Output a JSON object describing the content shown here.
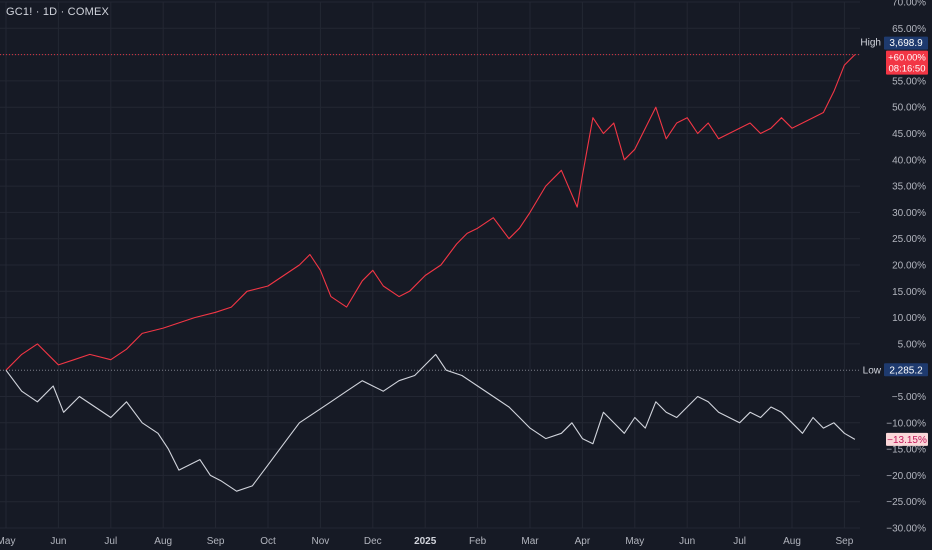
{
  "header": {
    "symbol": "GC1! · 1D · COMEX"
  },
  "colors": {
    "background": "#161a25",
    "grid": "#232733",
    "axis_text": "#b2b5be",
    "series_up": "#f23645",
    "series_down": "#d1d4dc",
    "high_badge": "#1e3a6e",
    "low_badge": "#1e3a6e",
    "marker_red": "#f23645"
  },
  "chart_data": {
    "type": "line",
    "ylim": [
      -30,
      70
    ],
    "yunit": "%",
    "y_ticks": [
      -30,
      -25,
      -20,
      -15,
      -10,
      -5,
      5,
      10,
      15,
      20,
      25,
      30,
      35,
      40,
      45,
      50,
      55,
      60,
      65,
      70
    ],
    "y_tick_labels": [
      "−30.00%",
      "−25.00%",
      "−20.00%",
      "−15.00%",
      "−10.00%",
      "−5.00%",
      "5.00%",
      "10.00%",
      "15.00%",
      "20.00%",
      "25.00%",
      "30.00%",
      "35.00%",
      "40.00%",
      "45.00%",
      "50.00%",
      "55.00%",
      "60.00%",
      "65.00%",
      "70.00%"
    ],
    "x_ticks": [
      "May",
      "Jun",
      "Jul",
      "Aug",
      "Sep",
      "Oct",
      "Nov",
      "Dec",
      "2025",
      "Feb",
      "Mar",
      "Apr",
      "May",
      "Jun",
      "Jul",
      "Aug",
      "Sep"
    ],
    "x_tick_positions": [
      0,
      1,
      2,
      3,
      4,
      5,
      6,
      7,
      8,
      9,
      10,
      11,
      12,
      13,
      14,
      15,
      16
    ],
    "series": [
      {
        "key": "up",
        "color": "#f23645",
        "x": [
          0,
          0.3,
          0.6,
          0.9,
          1.0,
          1.3,
          1.6,
          2.0,
          2.3,
          2.6,
          3.0,
          3.3,
          3.6,
          4.0,
          4.3,
          4.6,
          5.0,
          5.3,
          5.6,
          5.8,
          6.0,
          6.2,
          6.5,
          6.8,
          7.0,
          7.2,
          7.5,
          7.7,
          8.0,
          8.3,
          8.6,
          8.8,
          9.0,
          9.3,
          9.6,
          9.8,
          10.0,
          10.3,
          10.6,
          10.9,
          11.0,
          11.2,
          11.4,
          11.6,
          11.8,
          12.0,
          12.2,
          12.4,
          12.6,
          12.8,
          13.0,
          13.2,
          13.4,
          13.6,
          13.8,
          14.0,
          14.2,
          14.4,
          14.6,
          14.8,
          15.0,
          15.2,
          15.4,
          15.6,
          15.8,
          16.0,
          16.2
        ],
        "values": [
          0,
          3,
          5,
          2,
          1,
          2,
          3,
          2,
          4,
          7,
          8,
          9,
          10,
          11,
          12,
          15,
          16,
          18,
          20,
          22,
          19,
          14,
          12,
          17,
          19,
          16,
          14,
          15,
          18,
          20,
          24,
          26,
          27,
          29,
          25,
          27,
          30,
          35,
          38,
          31,
          37,
          48,
          45,
          47,
          40,
          42,
          46,
          50,
          44,
          47,
          48,
          45,
          47,
          44,
          45,
          46,
          47,
          45,
          46,
          48,
          46,
          47,
          48,
          49,
          53,
          58,
          60
        ]
      },
      {
        "key": "down",
        "color": "#d1d4dc",
        "x": [
          0,
          0.3,
          0.6,
          0.9,
          1.1,
          1.4,
          1.7,
          2.0,
          2.3,
          2.6,
          2.9,
          3.1,
          3.3,
          3.5,
          3.7,
          3.9,
          4.1,
          4.4,
          4.7,
          5.0,
          5.3,
          5.6,
          5.9,
          6.2,
          6.5,
          6.8,
          7.0,
          7.2,
          7.5,
          7.8,
          8.0,
          8.2,
          8.4,
          8.7,
          9.0,
          9.3,
          9.6,
          9.8,
          10.0,
          10.3,
          10.6,
          10.8,
          11.0,
          11.2,
          11.4,
          11.6,
          11.8,
          12.0,
          12.2,
          12.4,
          12.6,
          12.8,
          13.0,
          13.2,
          13.4,
          13.6,
          13.8,
          14.0,
          14.2,
          14.4,
          14.6,
          14.8,
          15.0,
          15.2,
          15.4,
          15.6,
          15.8,
          16.0,
          16.2
        ],
        "values": [
          0,
          -4,
          -6,
          -3,
          -8,
          -5,
          -7,
          -9,
          -6,
          -10,
          -12,
          -15,
          -19,
          -18,
          -17,
          -20,
          -21,
          -23,
          -22,
          -18,
          -14,
          -10,
          -8,
          -6,
          -4,
          -2,
          -3,
          -4,
          -2,
          -1,
          1,
          3,
          0,
          -1,
          -3,
          -5,
          -7,
          -9,
          -11,
          -13,
          -12,
          -10,
          -13,
          -14,
          -8,
          -10,
          -12,
          -9,
          -11,
          -6,
          -8,
          -9,
          -7,
          -5,
          -6,
          -8,
          -9,
          -10,
          -8,
          -9,
          -7,
          -8,
          -10,
          -12,
          -9,
          -11,
          -10,
          -12,
          -13.15
        ]
      }
    ],
    "high": {
      "label": "High",
      "value_text": "3,698.9",
      "level": 60
    },
    "low": {
      "label": "Low",
      "value_text": "2,285.2",
      "level": 0
    },
    "last_up": {
      "value_text": "+60.00%",
      "timer_text": "08:16:50",
      "level": 60
    },
    "last_down": {
      "value_text": "−13.15%",
      "level": -13.15
    }
  }
}
